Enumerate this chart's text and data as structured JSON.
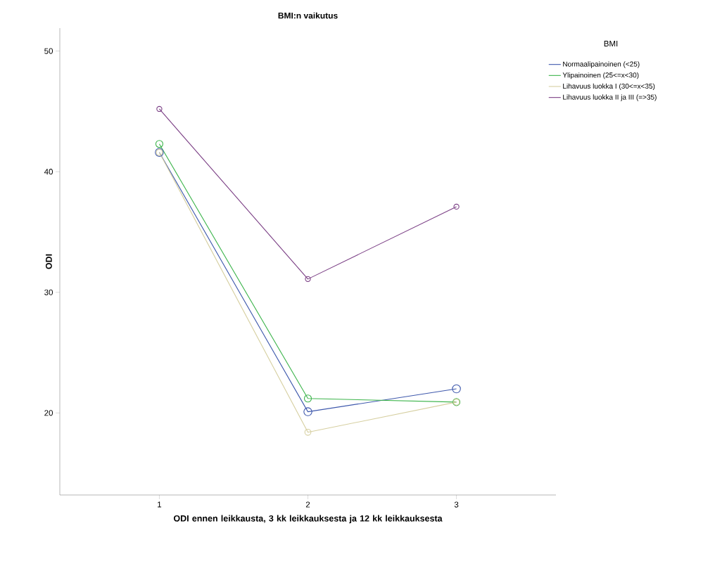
{
  "chart_data": {
    "type": "line",
    "title": "BMI:n vaikutus",
    "xlabel": "ODI ennen leikkausta, 3 kk leikkauksesta ja 12 kk leikkauksesta",
    "ylabel": "ODI",
    "legend_title": "BMI",
    "x": [
      1,
      2,
      3
    ],
    "series": [
      {
        "name": "Normaalipainoinen (<25)",
        "color": "#3e58ac",
        "values": [
          41.6,
          20.1,
          22.0
        ]
      },
      {
        "name": "Ylipainoinen (25<=x<30)",
        "color": "#3cb44b",
        "values": [
          42.3,
          21.2,
          20.9
        ]
      },
      {
        "name": "Lihavuus luokka I (30<=x<35)",
        "color": "#d6cfa0",
        "values": [
          41.6,
          18.4,
          20.9
        ]
      },
      {
        "name": "Lihavuus luokka II ja III (=>35)",
        "color": "#7b3f85",
        "values": [
          45.2,
          31.1,
          37.1
        ]
      }
    ],
    "xlim": [
      0.33,
      3.67
    ],
    "xticks": [
      1,
      2,
      3
    ],
    "ylim": [
      13.2,
      51.9
    ],
    "yticks": [
      20,
      30,
      40,
      50
    ],
    "grid": false,
    "legend": "top right",
    "marker": "circle",
    "line_style": "solid"
  }
}
